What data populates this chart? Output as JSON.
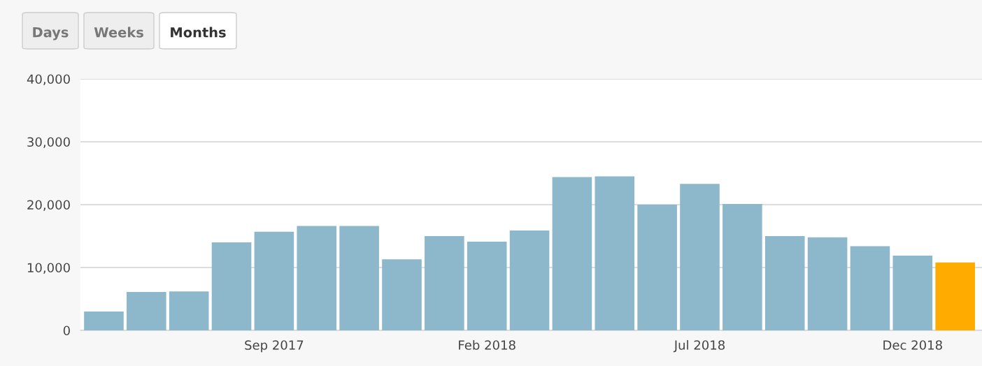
{
  "chart_data": {
    "type": "bar",
    "categories": [
      null,
      null,
      null,
      null,
      "Sep 2017",
      null,
      null,
      null,
      null,
      "Feb 2018",
      null,
      null,
      null,
      null,
      "Jul 2018",
      null,
      null,
      null,
      null,
      "Dec 2018",
      null
    ],
    "values": [
      3000,
      6100,
      6200,
      14000,
      15700,
      16600,
      16600,
      11300,
      15000,
      14100,
      15900,
      24400,
      24500,
      20000,
      23300,
      20100,
      15000,
      14800,
      13400,
      11900,
      10800
    ],
    "colors": [
      "#8db7cb",
      "#8db7cb",
      "#8db7cb",
      "#8db7cb",
      "#8db7cb",
      "#8db7cb",
      "#8db7cb",
      "#8db7cb",
      "#8db7cb",
      "#8db7cb",
      "#8db7cb",
      "#8db7cb",
      "#8db7cb",
      "#8db7cb",
      "#8db7cb",
      "#8db7cb",
      "#8db7cb",
      "#8db7cb",
      "#8db7cb",
      "#8db7cb",
      "#ffab00"
    ],
    "ylim": [
      0,
      40000
    ],
    "yticks": [
      0,
      {
        "value": 10000,
        "label": "10,000"
      },
      {
        "value": 20000,
        "label": "20,000"
      },
      {
        "value": 30000,
        "label": "30,000"
      },
      {
        "value": 40000,
        "label": "40,000"
      }
    ],
    "grid": "y",
    "annotations": [
      "Days",
      "Weeks",
      "Months"
    ]
  }
}
